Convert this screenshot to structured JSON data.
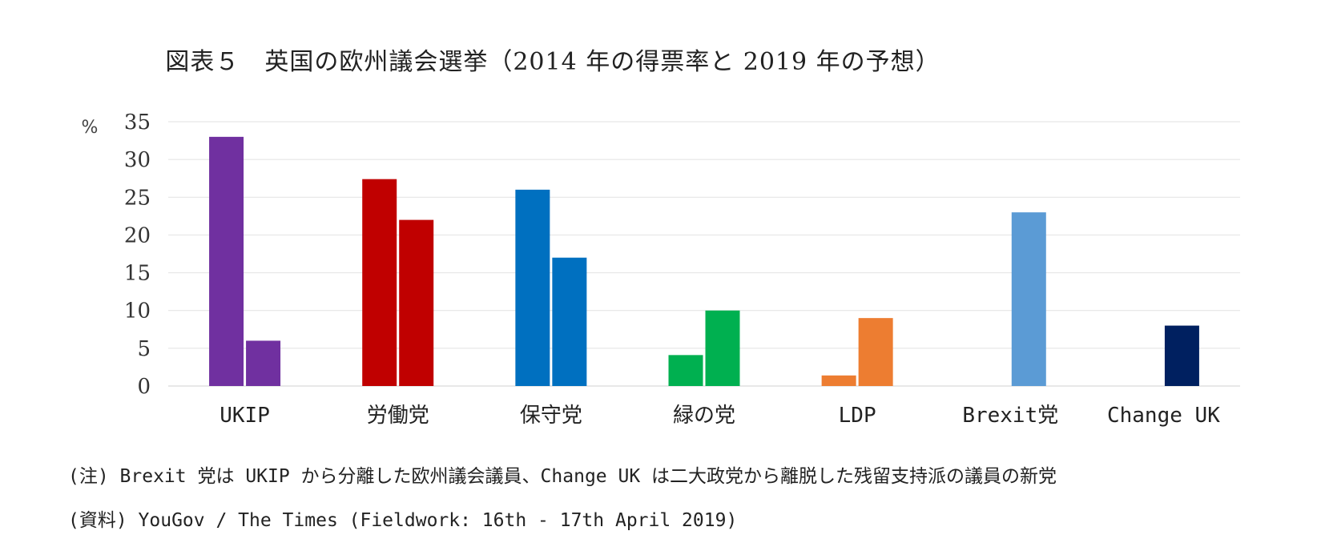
{
  "chart_data": {
    "type": "bar",
    "title": "図表５　英国の欧州議会選挙（2014 年の得票率と 2019 年の予想）",
    "ylabel": "%",
    "ylim": [
      0,
      35
    ],
    "yticks": [
      0,
      5,
      10,
      15,
      20,
      25,
      30,
      35
    ],
    "grid": true,
    "categories": [
      "UKIP",
      "労働党",
      "保守党",
      "緑の党",
      "LDP",
      "Brexit党",
      "Change UK"
    ],
    "series": [
      {
        "values": [
          33,
          27.4,
          26,
          4.1,
          1.4,
          null,
          null
        ]
      },
      {
        "values": [
          6,
          22,
          17,
          10,
          9,
          23,
          8
        ]
      }
    ],
    "bar_colors": [
      "#7030a0",
      "#c00000",
      "#0070c0",
      "#00b050",
      "#ed7d31",
      "#5b9bd5",
      "#002060"
    ]
  },
  "notes": {
    "note1": "(注) Brexit 党は UKIP から分離した欧州議会議員、Change UK は二大政党から離脱した残留支持派の議員の新党",
    "note2": "(資料) YouGov / The Times (Fieldwork: 16th - 17th April 2019)"
  }
}
